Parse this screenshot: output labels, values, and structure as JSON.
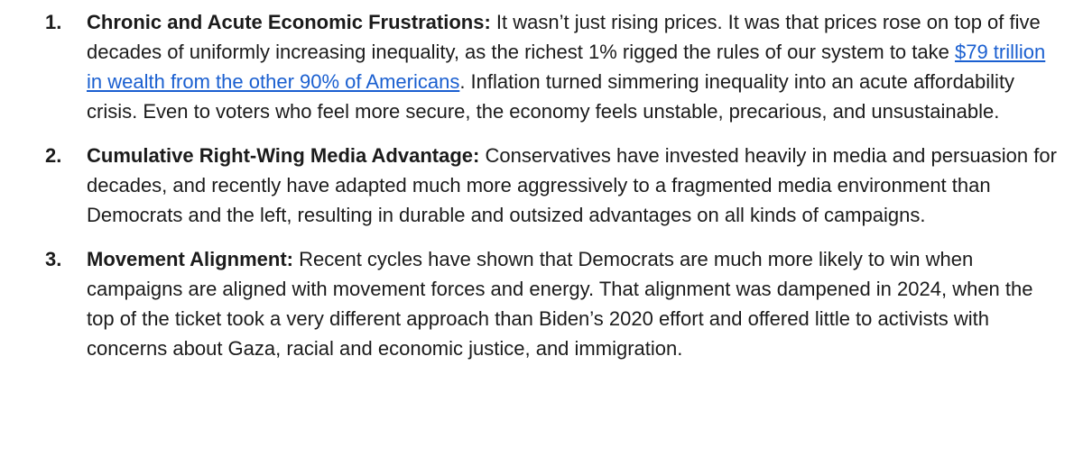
{
  "list": {
    "items": [
      {
        "number": "1.",
        "heading": "Chronic and Acute Economic Frustrations:",
        "text_before": "It wasn’t just rising prices. It was that prices rose on top of five decades of uniformly increasing inequality, as the richest 1% rigged the rules of our system to take ",
        "link": "$79 trillion in wealth from the other 90% of Americans",
        "text_after": ". Inflation turned simmering inequality into an acute affordability crisis. Even to voters who feel more secure, the economy feels unstable, precarious, and unsustainable."
      },
      {
        "number": "2.",
        "heading": "Cumulative Right-Wing Media Advantage:",
        "text": "Conservatives have invested heavily in media and persuasion for decades, and recently have adapted much more aggressively to a fragmented media environment than Democrats and the left, resulting in durable and outsized advantages on all kinds of campaigns."
      },
      {
        "number": "3.",
        "heading": "Movement Alignment:",
        "text": "Recent cycles have shown that Democrats are much more likely to win when campaigns are aligned with movement forces and energy. That alignment was dampened in 2024, when the top of the ticket took a very different approach than Biden’s 2020 effort and offered little to activists with concerns about Gaza, racial and economic justice, and immigration."
      }
    ]
  }
}
